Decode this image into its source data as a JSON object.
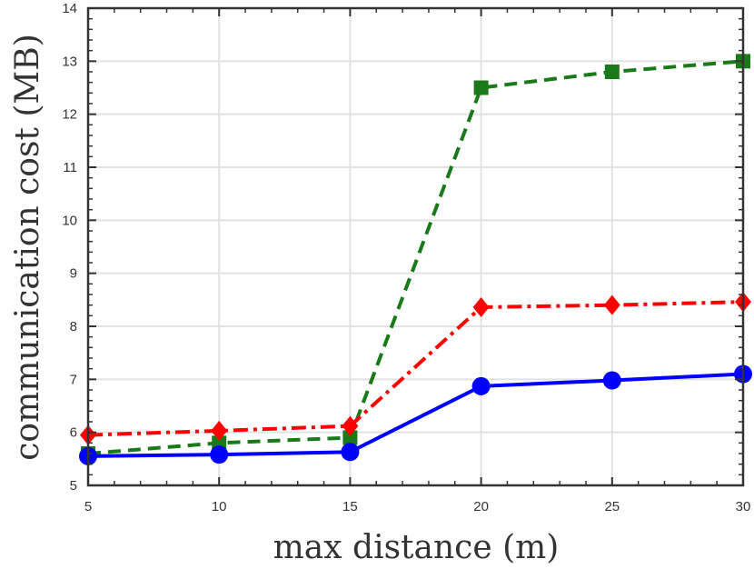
{
  "chart_data": {
    "type": "line",
    "title": "",
    "xlabel": "max distance (m)",
    "ylabel": "communication cost (MB)",
    "xlim": [
      5,
      30
    ],
    "ylim": [
      5,
      14
    ],
    "grid": true,
    "x": [
      5,
      10,
      15,
      20,
      25,
      30
    ],
    "xticks": [
      "5",
      "10",
      "15",
      "20",
      "25",
      "30"
    ],
    "yticks": [
      "5",
      "6",
      "7",
      "8",
      "9",
      "10",
      "11",
      "12",
      "13",
      "14"
    ],
    "series": [
      {
        "name": "green-square-dashed",
        "color": "#1a7a1a",
        "marker": "square",
        "dash": "dashed",
        "values": [
          5.6,
          5.8,
          5.9,
          12.5,
          12.8,
          13.0
        ]
      },
      {
        "name": "red-diamond-dashdot",
        "color": "#ff0000",
        "marker": "diamond",
        "dash": "dashdot",
        "values": [
          5.95,
          6.03,
          6.12,
          8.36,
          8.4,
          8.46
        ]
      },
      {
        "name": "blue-circle-solid",
        "color": "#0000ff",
        "marker": "circle",
        "dash": "solid",
        "values": [
          5.55,
          5.58,
          5.63,
          6.87,
          6.98,
          7.1
        ]
      }
    ]
  }
}
